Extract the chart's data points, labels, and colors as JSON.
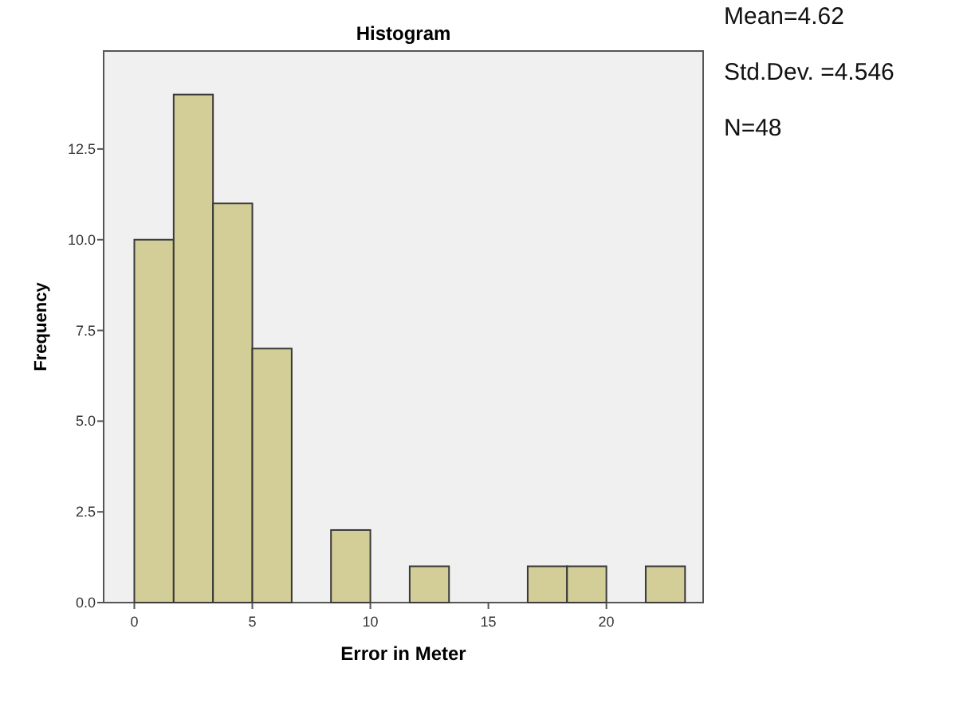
{
  "chart_data": {
    "type": "histogram",
    "title": "Histogram",
    "xlabel": "Error in Meter",
    "ylabel": "Frequency",
    "bins": [
      0,
      1.667,
      3.333,
      5,
      6.667,
      8.333,
      10,
      11.667,
      13.333,
      15,
      16.667,
      18.333,
      20,
      21.667,
      23.333
    ],
    "values": [
      10,
      14,
      11,
      7,
      0,
      2,
      0,
      1,
      0,
      0,
      1,
      1,
      0,
      1
    ],
    "color": "#d3ce97",
    "xlim": [
      -1.3,
      24.1
    ],
    "ylim": [
      0,
      15.2
    ],
    "xticks": [
      0,
      5,
      10,
      15,
      20
    ],
    "yticks": [
      {
        "value": 0,
        "label": "0.0"
      },
      {
        "value": 2.5,
        "label": "2.5"
      },
      {
        "value": 5,
        "label": "5.0"
      },
      {
        "value": 7.5,
        "label": "7.5"
      },
      {
        "value": 10,
        "label": "10.0"
      },
      {
        "value": 12.5,
        "label": "12.5"
      }
    ],
    "annotations": [
      "Mean=4.62",
      "Std.Dev. =4.546",
      "N=48"
    ]
  }
}
